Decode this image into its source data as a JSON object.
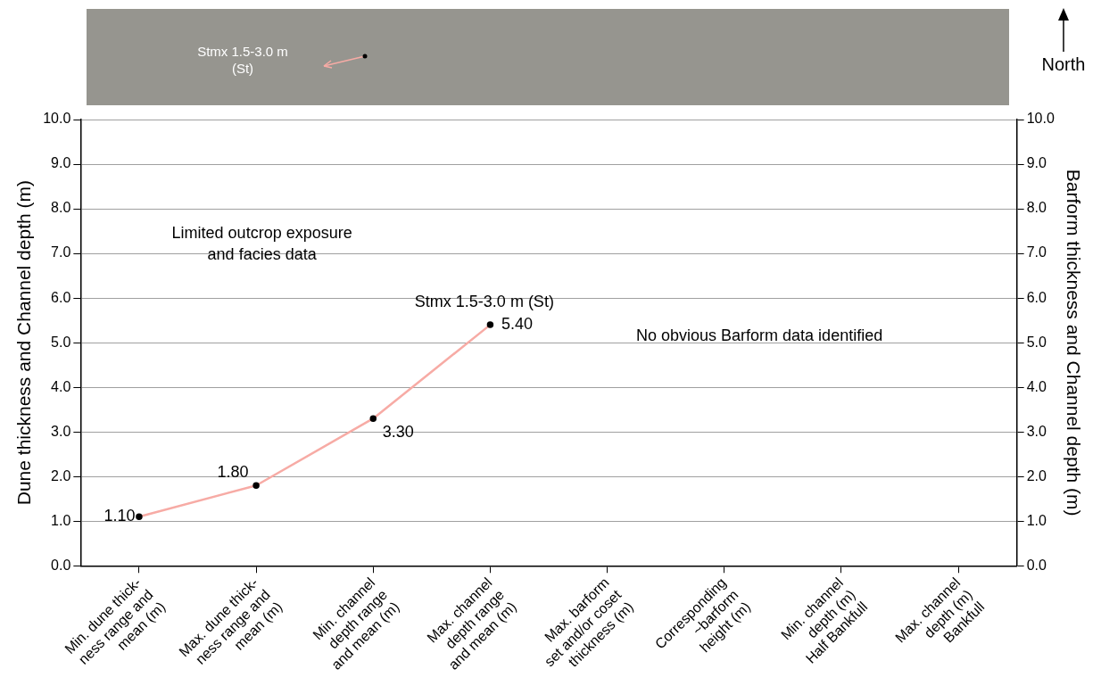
{
  "chart_data": {
    "type": "line",
    "categories": [
      "Min. dune thick-\nness range and\nmean (m)",
      "Max. dune thick-\nness range and\nmean (m)",
      "Min. channel\ndepth range\nand mean (m)",
      "Max. channel\ndepth range\nand mean (m)",
      "Max. barform\nset and/or coset\nthickness (m)",
      "Corresponding\n~barform\nheight (m)",
      "Min. channel\ndepth (m)\nHalf Bankfull",
      "Max. channel\ndepth (m)\nBankfull"
    ],
    "series": [
      {
        "color": "#f7aba5",
        "values": [
          1.1,
          1.8,
          3.3,
          5.4,
          null,
          null,
          null,
          null
        ],
        "value_labels": [
          "1.10",
          "1.80",
          "3.30",
          "5.40",
          null,
          null,
          null,
          null
        ]
      }
    ],
    "ylabel": "Dune thickness and Channel depth (m)",
    "y2label": "Barform thickness and Channel depth (m)",
    "ylim": [
      0,
      10
    ],
    "yticks": [
      {
        "value": 0,
        "label": "0.0"
      },
      {
        "value": 1,
        "label": "1.0"
      },
      {
        "value": 2,
        "label": "2.0"
      },
      {
        "value": 3,
        "label": "3.0"
      },
      {
        "value": 4,
        "label": "4.0"
      },
      {
        "value": 5,
        "label": "5.0"
      },
      {
        "value": 6,
        "label": "6.0"
      },
      {
        "value": 7,
        "label": "7.0"
      },
      {
        "value": 8,
        "label": "8.0"
      },
      {
        "value": 9,
        "label": "9.0"
      },
      {
        "value": 10,
        "label": "10.0"
      }
    ],
    "y2lim": [
      0,
      10
    ],
    "y2ticks": [
      {
        "value": 0,
        "label": "0.0"
      },
      {
        "value": 1,
        "label": "1.0"
      },
      {
        "value": 2,
        "label": "2.0"
      },
      {
        "value": 3,
        "label": "3.0"
      },
      {
        "value": 4,
        "label": "4.0"
      },
      {
        "value": 5,
        "label": "5.0"
      },
      {
        "value": 6,
        "label": "6.0"
      },
      {
        "value": 7,
        "label": "7.0"
      },
      {
        "value": 8,
        "label": "8.0"
      },
      {
        "value": 9,
        "label": "9.0"
      },
      {
        "value": 10,
        "label": "10.0"
      }
    ],
    "grid": "y",
    "legend": false,
    "marker": "circle",
    "line_style": "solid",
    "annotations": [
      "Stmx 1.5-3.0 m\n(St)",
      "North",
      "Limited outcrop exposure\nand facies data",
      "Stmx 1.5-3.0 m (St)",
      "No obvious Barform data identified"
    ]
  }
}
